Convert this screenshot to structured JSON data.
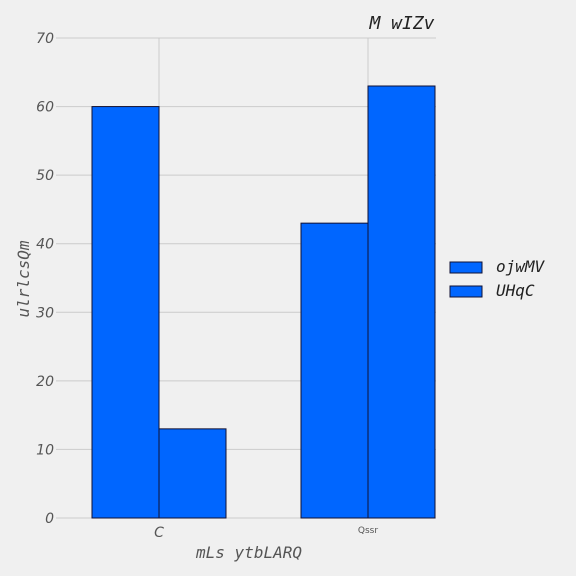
{
  "chart_data": {
    "type": "bar",
    "title": "M wIZv",
    "xlabel": "mLs ytbLARQ",
    "ylabel": "ulrlcsQm",
    "categories": [
      "C",
      "Qssr"
    ],
    "series": [
      {
        "name": "ojwMV",
        "values": [
          60,
          43
        ]
      },
      {
        "name": "UHqC",
        "values": [
          13,
          63
        ]
      }
    ],
    "ylim": [
      0,
      70
    ],
    "yticks": [
      0,
      10,
      20,
      30,
      40,
      50,
      60,
      70
    ],
    "grid": true,
    "legend_position": "right",
    "colors": [
      "#0066ff",
      "#0066ff"
    ],
    "bar_edge_color": "#111133"
  }
}
